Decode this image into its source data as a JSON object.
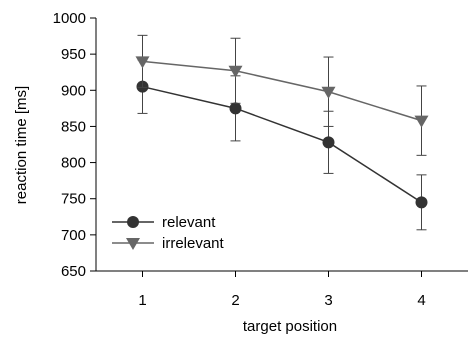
{
  "chart_data": {
    "type": "line",
    "title": "",
    "xlabel": "target position",
    "ylabel": "reaction time [ms]",
    "x": [
      1,
      2,
      3,
      4
    ],
    "xticks": [
      "1",
      "2",
      "3",
      "4"
    ],
    "xlim": [
      0.5,
      4.5
    ],
    "ylim": [
      650,
      1000
    ],
    "yticks": [
      "650",
      "700",
      "750",
      "800",
      "850",
      "900",
      "950",
      "1000"
    ],
    "grid": false,
    "legend_position": "bottom-left",
    "series": [
      {
        "name": "relevant",
        "marker": "circle",
        "color": "#333333",
        "values": [
          905,
          875,
          828,
          745
        ],
        "error": [
          37,
          45,
          43,
          38
        ]
      },
      {
        "name": "irrelevant",
        "marker": "triangle-down",
        "color": "#666666",
        "values": [
          940,
          927,
          898,
          858
        ],
        "error": [
          36,
          45,
          48,
          48
        ]
      }
    ]
  }
}
